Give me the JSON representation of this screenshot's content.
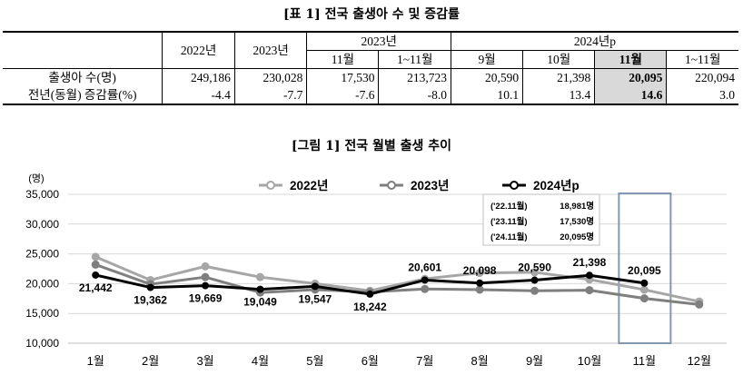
{
  "table": {
    "title": "[표 1] 전국 출생아 수 및 증감률",
    "year_headers": [
      "2022년",
      "2023년",
      "2023년",
      "2024년p"
    ],
    "month_headers_2023": [
      "11월",
      "1~11월"
    ],
    "month_headers_2024": [
      "9월",
      "10월",
      "11월",
      "1~11월"
    ],
    "rows": [
      {
        "label": "출생아 수(명)",
        "values": [
          "249,186",
          "230,028",
          "17,530",
          "213,723",
          "20,590",
          "21,398",
          "20,095",
          "220,094"
        ]
      },
      {
        "label": "전년(동월) 증감률(%)",
        "values": [
          "-4.4",
          "-7.7",
          "-7.6",
          "-8.0",
          "10.1",
          "13.4",
          "14.6",
          "3.0"
        ]
      }
    ]
  },
  "figure": {
    "title": "[그림 1] 전국 월별 출생 추이",
    "unit": "(명)",
    "annotation": [
      {
        "label": "('22.11월)",
        "value": "18,981명"
      },
      {
        "label": "('23.11월)",
        "value": "17,530명"
      },
      {
        "label": "('24.11월)",
        "value": "20,095명"
      }
    ]
  },
  "chart_data": {
    "type": "line",
    "categories": [
      "1월",
      "2월",
      "3월",
      "4월",
      "5월",
      "6월",
      "7월",
      "8월",
      "9월",
      "10월",
      "11월",
      "12월"
    ],
    "ylim": [
      10000,
      35000
    ],
    "yticks": [
      "10,000",
      "15,000",
      "20,000",
      "25,000",
      "30,000",
      "35,000"
    ],
    "grid": true,
    "legend_position": "top",
    "highlight_category": "11월",
    "series": [
      {
        "name": "2022년",
        "color": "#a6a6a6",
        "values": [
          24500,
          20600,
          22900,
          21100,
          20000,
          18800,
          20800,
          21800,
          21900,
          20700,
          18981,
          17000
        ]
      },
      {
        "name": "2023년",
        "color": "#7f7f7f",
        "values": [
          23200,
          19900,
          21100,
          18500,
          19000,
          18600,
          19100,
          19000,
          18800,
          18900,
          17530,
          16500
        ]
      },
      {
        "name": "2024년p",
        "color": "#000000",
        "values": [
          21442,
          19362,
          19669,
          19049,
          19547,
          18242,
          20601,
          20098,
          20590,
          21398,
          20095,
          null
        ],
        "labels": [
          "21,442",
          "19,362",
          "19,669",
          "19,049",
          "19,547",
          "18,242",
          "20,601",
          "20,098",
          "20,590",
          "21,398",
          "20,095",
          null
        ]
      }
    ]
  }
}
